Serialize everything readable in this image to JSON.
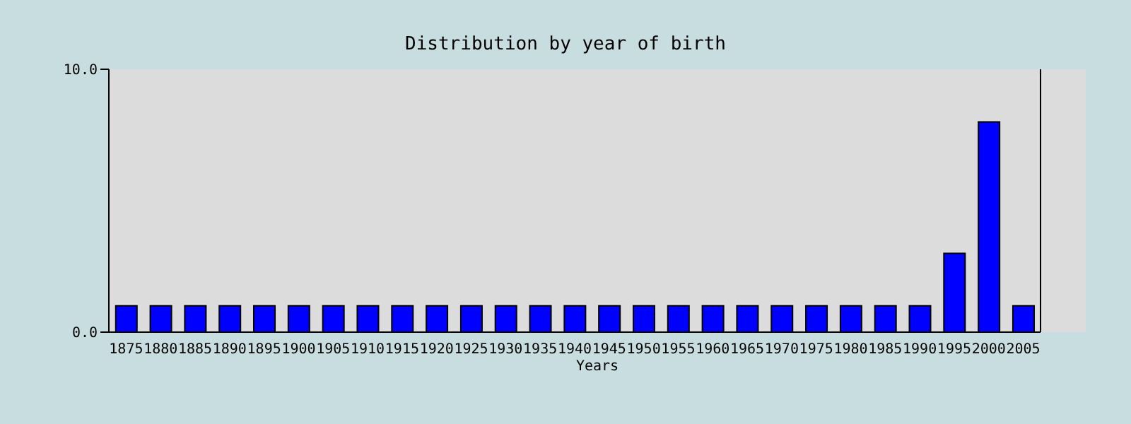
{
  "chart_data": {
    "type": "bar",
    "title": "Distribution by year of birth",
    "xlabel": "Years",
    "categories": [
      "1875",
      "1880",
      "1885",
      "1890",
      "1895",
      "1900",
      "1905",
      "1910",
      "1915",
      "1920",
      "1925",
      "1930",
      "1935",
      "1940",
      "1945",
      "1950",
      "1955",
      "1960",
      "1965",
      "1970",
      "1975",
      "1980",
      "1985",
      "1990",
      "1995",
      "2000",
      "2005"
    ],
    "values": [
      1,
      1,
      1,
      1,
      1,
      1,
      1,
      1,
      1,
      1,
      1,
      1,
      1,
      1,
      1,
      1,
      1,
      1,
      1,
      1,
      1,
      1,
      1,
      1,
      3,
      8,
      1
    ],
    "color": "#0000ff",
    "ylim": [
      0,
      10
    ],
    "yticks": [
      {
        "value": 0,
        "label": "0.0"
      },
      {
        "value": 10,
        "label": "10.0"
      }
    ],
    "grid": false,
    "legend": false
  }
}
